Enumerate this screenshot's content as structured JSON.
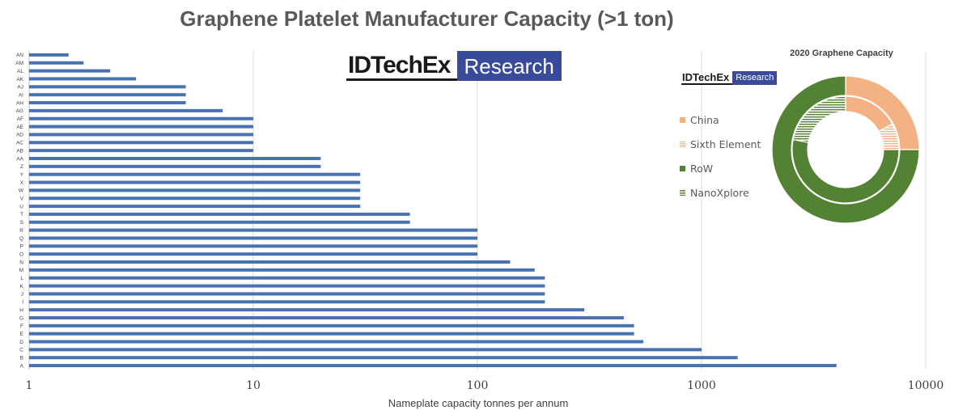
{
  "title": "Graphene Platelet Manufacturer Capacity (>1 ton)",
  "x_axis_label": "Nameplate capacity tonnes per annum",
  "logo": {
    "brand": "IDTechEx",
    "tag": "Research"
  },
  "colors": {
    "bar": "#4a72b0",
    "china": "#f4b183",
    "row": "#548235",
    "grid": "#d9d9d9"
  },
  "chart_data": [
    {
      "type": "bar",
      "orientation": "horizontal",
      "title": "Graphene Platelet Manufacturer Capacity (>1 ton)",
      "xlabel": "Nameplate capacity tonnes per annum",
      "ylabel": "",
      "x_scale": "log",
      "xlim": [
        1,
        10000
      ],
      "x_ticks": [
        "1",
        "10",
        "100",
        "1000",
        "10000"
      ],
      "grid": "vertical",
      "categories": [
        "A",
        "B",
        "C",
        "D",
        "E",
        "F",
        "G",
        "H",
        "I",
        "J",
        "K",
        "L",
        "M",
        "N",
        "O",
        "P",
        "Q",
        "R",
        "S",
        "T",
        "U",
        "V",
        "W",
        "X",
        "Y",
        "Z",
        "AA",
        "AB",
        "AC",
        "AD",
        "AE",
        "AF",
        "AG",
        "AH",
        "AI",
        "AJ",
        "AK",
        "AL",
        "AM",
        "AN"
      ],
      "values": [
        4000,
        1450,
        1000,
        550,
        500,
        500,
        450,
        300,
        200,
        200,
        200,
        200,
        180,
        140,
        100,
        100,
        100,
        100,
        50,
        50,
        30,
        30,
        30,
        30,
        30,
        20,
        20,
        10,
        10,
        10,
        10,
        10,
        7.3,
        5,
        5,
        5,
        3,
        2.3,
        1.75,
        1.5
      ]
    },
    {
      "type": "pie",
      "subtype": "double-donut",
      "title": "2020 Graphene Capacity",
      "legend": [
        "China",
        "Sixth Element",
        "RoW",
        "NanoXplore"
      ],
      "legend_position": "left",
      "outer_ring": [
        {
          "label": "China",
          "value": 25,
          "color": "#f4b183"
        },
        {
          "label": "RoW",
          "value": 75,
          "color": "#548235"
        }
      ],
      "inner_ring": [
        {
          "label": "China",
          "value": 17,
          "color": "#f4b183"
        },
        {
          "label": "Sixth Element",
          "value": 8,
          "color": "#f4b183",
          "pattern": "hatched"
        },
        {
          "label": "RoW",
          "value": 53,
          "color": "#548235"
        },
        {
          "label": "NanoXplore",
          "value": 22,
          "color": "#548235",
          "pattern": "hatched"
        }
      ]
    }
  ]
}
